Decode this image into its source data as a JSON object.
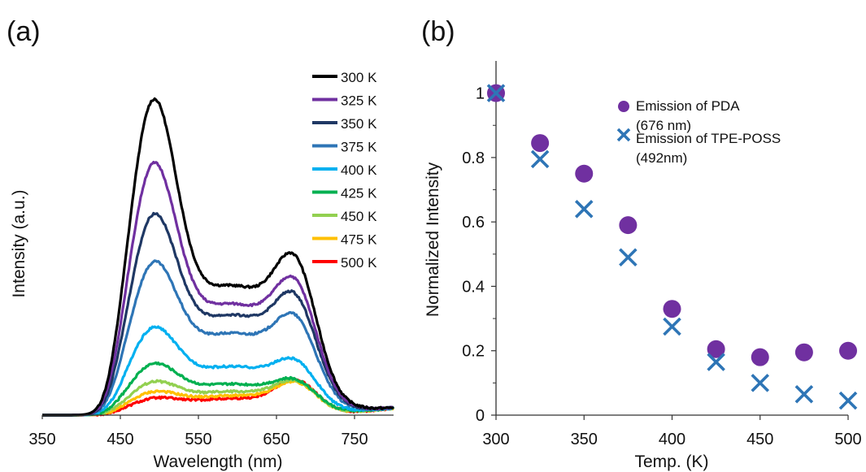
{
  "chart_data": [
    {
      "panel_label": "(a)",
      "type": "line",
      "xlabel": "Wavelength (nm)",
      "ylabel": "Intensity (a.u.)",
      "xlim": [
        350,
        800
      ],
      "ylim": [
        0,
        1.0
      ],
      "x_ticks": [
        "350",
        "450",
        "550",
        "650",
        "750"
      ],
      "x_tick_values": [
        350,
        450,
        550,
        650,
        750
      ],
      "legend_position": "top-right",
      "grid": false,
      "series": [
        {
          "name": "300 K",
          "color": "#000000",
          "peak1": 0.955,
          "shoulder": 0.465,
          "peak2": 0.485
        },
        {
          "name": "325 K",
          "color": "#7030A0",
          "peak1": 0.765,
          "shoulder": 0.4,
          "peak2": 0.415
        },
        {
          "name": "350 K",
          "color": "#1F3864",
          "peak1": 0.615,
          "shoulder": 0.36,
          "peak2": 0.37
        },
        {
          "name": "375 K",
          "color": "#2E75B6",
          "peak1": 0.47,
          "shoulder": 0.295,
          "peak2": 0.305
        },
        {
          "name": "400 K",
          "color": "#00B0F0",
          "peak1": 0.27,
          "shoulder": 0.175,
          "peak2": 0.17
        },
        {
          "name": "425 K",
          "color": "#00B050",
          "peak1": 0.16,
          "shoulder": 0.112,
          "peak2": 0.11
        },
        {
          "name": "450 K",
          "color": "#92D050",
          "peak1": 0.105,
          "shoulder": 0.085,
          "peak2": 0.105
        },
        {
          "name": "475 K",
          "color": "#FFC000",
          "peak1": 0.075,
          "shoulder": 0.07,
          "peak2": 0.1
        },
        {
          "name": "500 K",
          "color": "#FF0000",
          "peak1": 0.055,
          "shoulder": 0.06,
          "peak2": 0.105
        }
      ]
    },
    {
      "panel_label": "(b)",
      "type": "scatter",
      "xlabel": "Temp. (K)",
      "ylabel": "Normalized Intensity",
      "xlim": [
        300,
        500
      ],
      "ylim": [
        0,
        1.1
      ],
      "x_ticks": [
        "300",
        "350",
        "400",
        "450",
        "500"
      ],
      "x_tick_values": [
        300,
        350,
        400,
        450,
        500
      ],
      "y_ticks": [
        "0",
        "0.2",
        "0.4",
        "0.6",
        "0.8",
        "1"
      ],
      "y_tick_values": [
        0,
        0.2,
        0.4,
        0.6,
        0.8,
        1.0
      ],
      "legend_position": "top-right",
      "grid": false,
      "series": [
        {
          "name_line1": "Emission of PDA",
          "name_line2": "(676 nm)",
          "marker": "circle",
          "color": "#7030A0",
          "x": [
            300,
            325,
            350,
            375,
            400,
            425,
            450,
            475,
            500
          ],
          "y": [
            1.0,
            0.845,
            0.75,
            0.59,
            0.33,
            0.205,
            0.18,
            0.195,
            0.2
          ]
        },
        {
          "name_line1": "Emission of TPE-POSS",
          "name_line2": "(492nm)",
          "marker": "x",
          "color": "#2E75B6",
          "x": [
            300,
            325,
            350,
            375,
            400,
            425,
            450,
            475,
            500
          ],
          "y": [
            1.0,
            0.795,
            0.64,
            0.49,
            0.275,
            0.165,
            0.1,
            0.065,
            0.045
          ]
        }
      ]
    }
  ]
}
